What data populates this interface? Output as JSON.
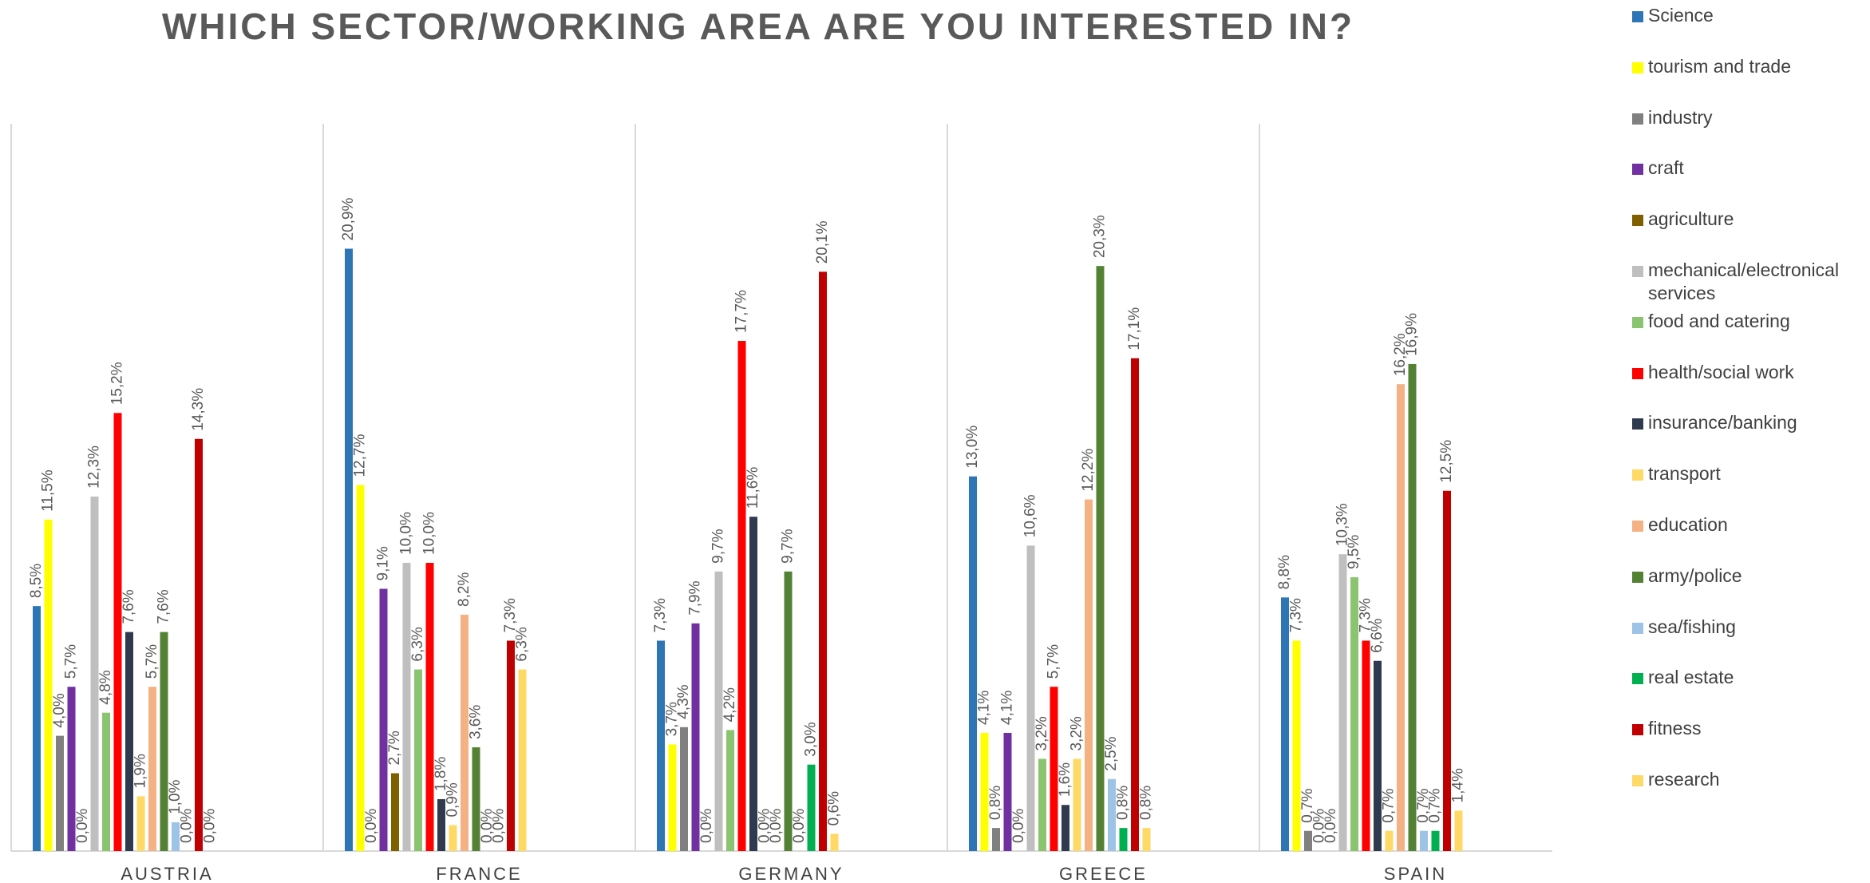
{
  "chart_data": {
    "type": "bar",
    "title": "WHICH SECTOR/WORKING AREA ARE YOU INTERESTED IN?",
    "categories": [
      "AUSTRIA",
      "FRANCE",
      "GERMANY",
      "GREECE",
      "SPAIN"
    ],
    "unit": "%",
    "ylim": [
      0,
      22
    ],
    "grid": false,
    "legend_position": "right",
    "series": [
      {
        "name": "Science",
        "color": "#2E75B6",
        "values": [
          8.5,
          20.9,
          7.3,
          13.0,
          8.8
        ],
        "labels": [
          "8,5%",
          "20,9%",
          "7,3%",
          "13,0%",
          "8,8%"
        ]
      },
      {
        "name": "tourism and trade",
        "color": "#FFFF00",
        "values": [
          11.5,
          12.7,
          3.7,
          4.1,
          7.3
        ],
        "labels": [
          "11,5%",
          "12,7%",
          "3,7%",
          "4,1%",
          "7,3%"
        ]
      },
      {
        "name": "industry",
        "color": "#808080",
        "values": [
          4.0,
          0.0,
          4.3,
          0.8,
          0.7
        ],
        "labels": [
          "4,0%",
          "0,0%",
          "4,3%",
          "0,8%",
          "0,7%"
        ]
      },
      {
        "name": "craft",
        "color": "#7030A0",
        "values": [
          5.7,
          9.1,
          7.9,
          4.1,
          0.0
        ],
        "labels": [
          "5,7%",
          "9,1%",
          "7,9%",
          "4,1%",
          "0,0%"
        ]
      },
      {
        "name": "agriculture",
        "color": "#7F6000",
        "values": [
          0.0,
          2.7,
          0.0,
          0.0,
          0.0
        ],
        "labels": [
          "0,0%",
          "2,7%",
          "0,0%",
          "0,0%",
          "0,0%"
        ]
      },
      {
        "name": "mechanical/electronical services",
        "color": "#BFBFBF",
        "values": [
          12.3,
          10.0,
          9.7,
          10.6,
          10.3
        ],
        "labels": [
          "12,3%",
          "10,0%",
          "9,7%",
          "10,6%",
          "10,3%"
        ]
      },
      {
        "name": "food and catering",
        "color": "#8BC470",
        "values": [
          4.8,
          6.3,
          4.2,
          3.2,
          9.5
        ],
        "labels": [
          "4,8%",
          "6,3%",
          "4,2%",
          "3,2%",
          "9,5%"
        ]
      },
      {
        "name": "health/social work",
        "color": "#FF0000",
        "values": [
          15.2,
          10.0,
          17.7,
          5.7,
          7.3
        ],
        "labels": [
          "15,2%",
          "10,0%",
          "17,7%",
          "5,7%",
          "7,3%"
        ]
      },
      {
        "name": "insurance/banking",
        "color": "#2F3A4F",
        "values": [
          7.6,
          1.8,
          11.6,
          1.6,
          6.6
        ],
        "labels": [
          "7,6%",
          "1,8%",
          "11,6%",
          "1,6%",
          "6,6%"
        ]
      },
      {
        "name": "transport",
        "color": "#FFD966",
        "values": [
          1.9,
          0.9,
          0.0,
          3.2,
          0.7
        ],
        "labels": [
          "1,9%",
          "0,9%",
          "0,0%",
          "3,2%",
          "0,7%"
        ]
      },
      {
        "name": "education",
        "color": "#F4B183",
        "values": [
          5.7,
          8.2,
          0.0,
          12.2,
          16.2
        ],
        "labels": [
          "5,7%",
          "8,2%",
          "0,0%",
          "12,2%",
          "16,2%"
        ]
      },
      {
        "name": "army/police",
        "color": "#548235",
        "values": [
          7.6,
          3.6,
          9.7,
          20.3,
          16.9
        ],
        "labels": [
          "7,6%",
          "3,6%",
          "9,7%",
          "20,3%",
          "16,9%"
        ]
      },
      {
        "name": "sea/fishing",
        "color": "#9DC3E6",
        "values": [
          1.0,
          0.0,
          0.0,
          2.5,
          0.7
        ],
        "labels": [
          "1,0%",
          "0,0%",
          "0,0%",
          "2,5%",
          "0,7%"
        ]
      },
      {
        "name": "real estate",
        "color": "#00B050",
        "values": [
          0.0,
          0.0,
          3.0,
          0.8,
          0.7
        ],
        "labels": [
          "0,0%",
          "0,0%",
          "3,0%",
          "0,8%",
          "0,7%"
        ]
      },
      {
        "name": "fitness",
        "color": "#C00000",
        "values": [
          14.3,
          7.3,
          20.1,
          17.1,
          12.5
        ],
        "labels": [
          "14,3%",
          "7,3%",
          "20,1%",
          "17,1%",
          "12,5%"
        ]
      },
      {
        "name": "research",
        "color": "#FFD966",
        "values": [
          0.0,
          6.3,
          0.6,
          0.8,
          1.4
        ],
        "labels": [
          "0,0%",
          "6,3%",
          "0,6%",
          "0,8%",
          "1,4%"
        ]
      }
    ]
  }
}
